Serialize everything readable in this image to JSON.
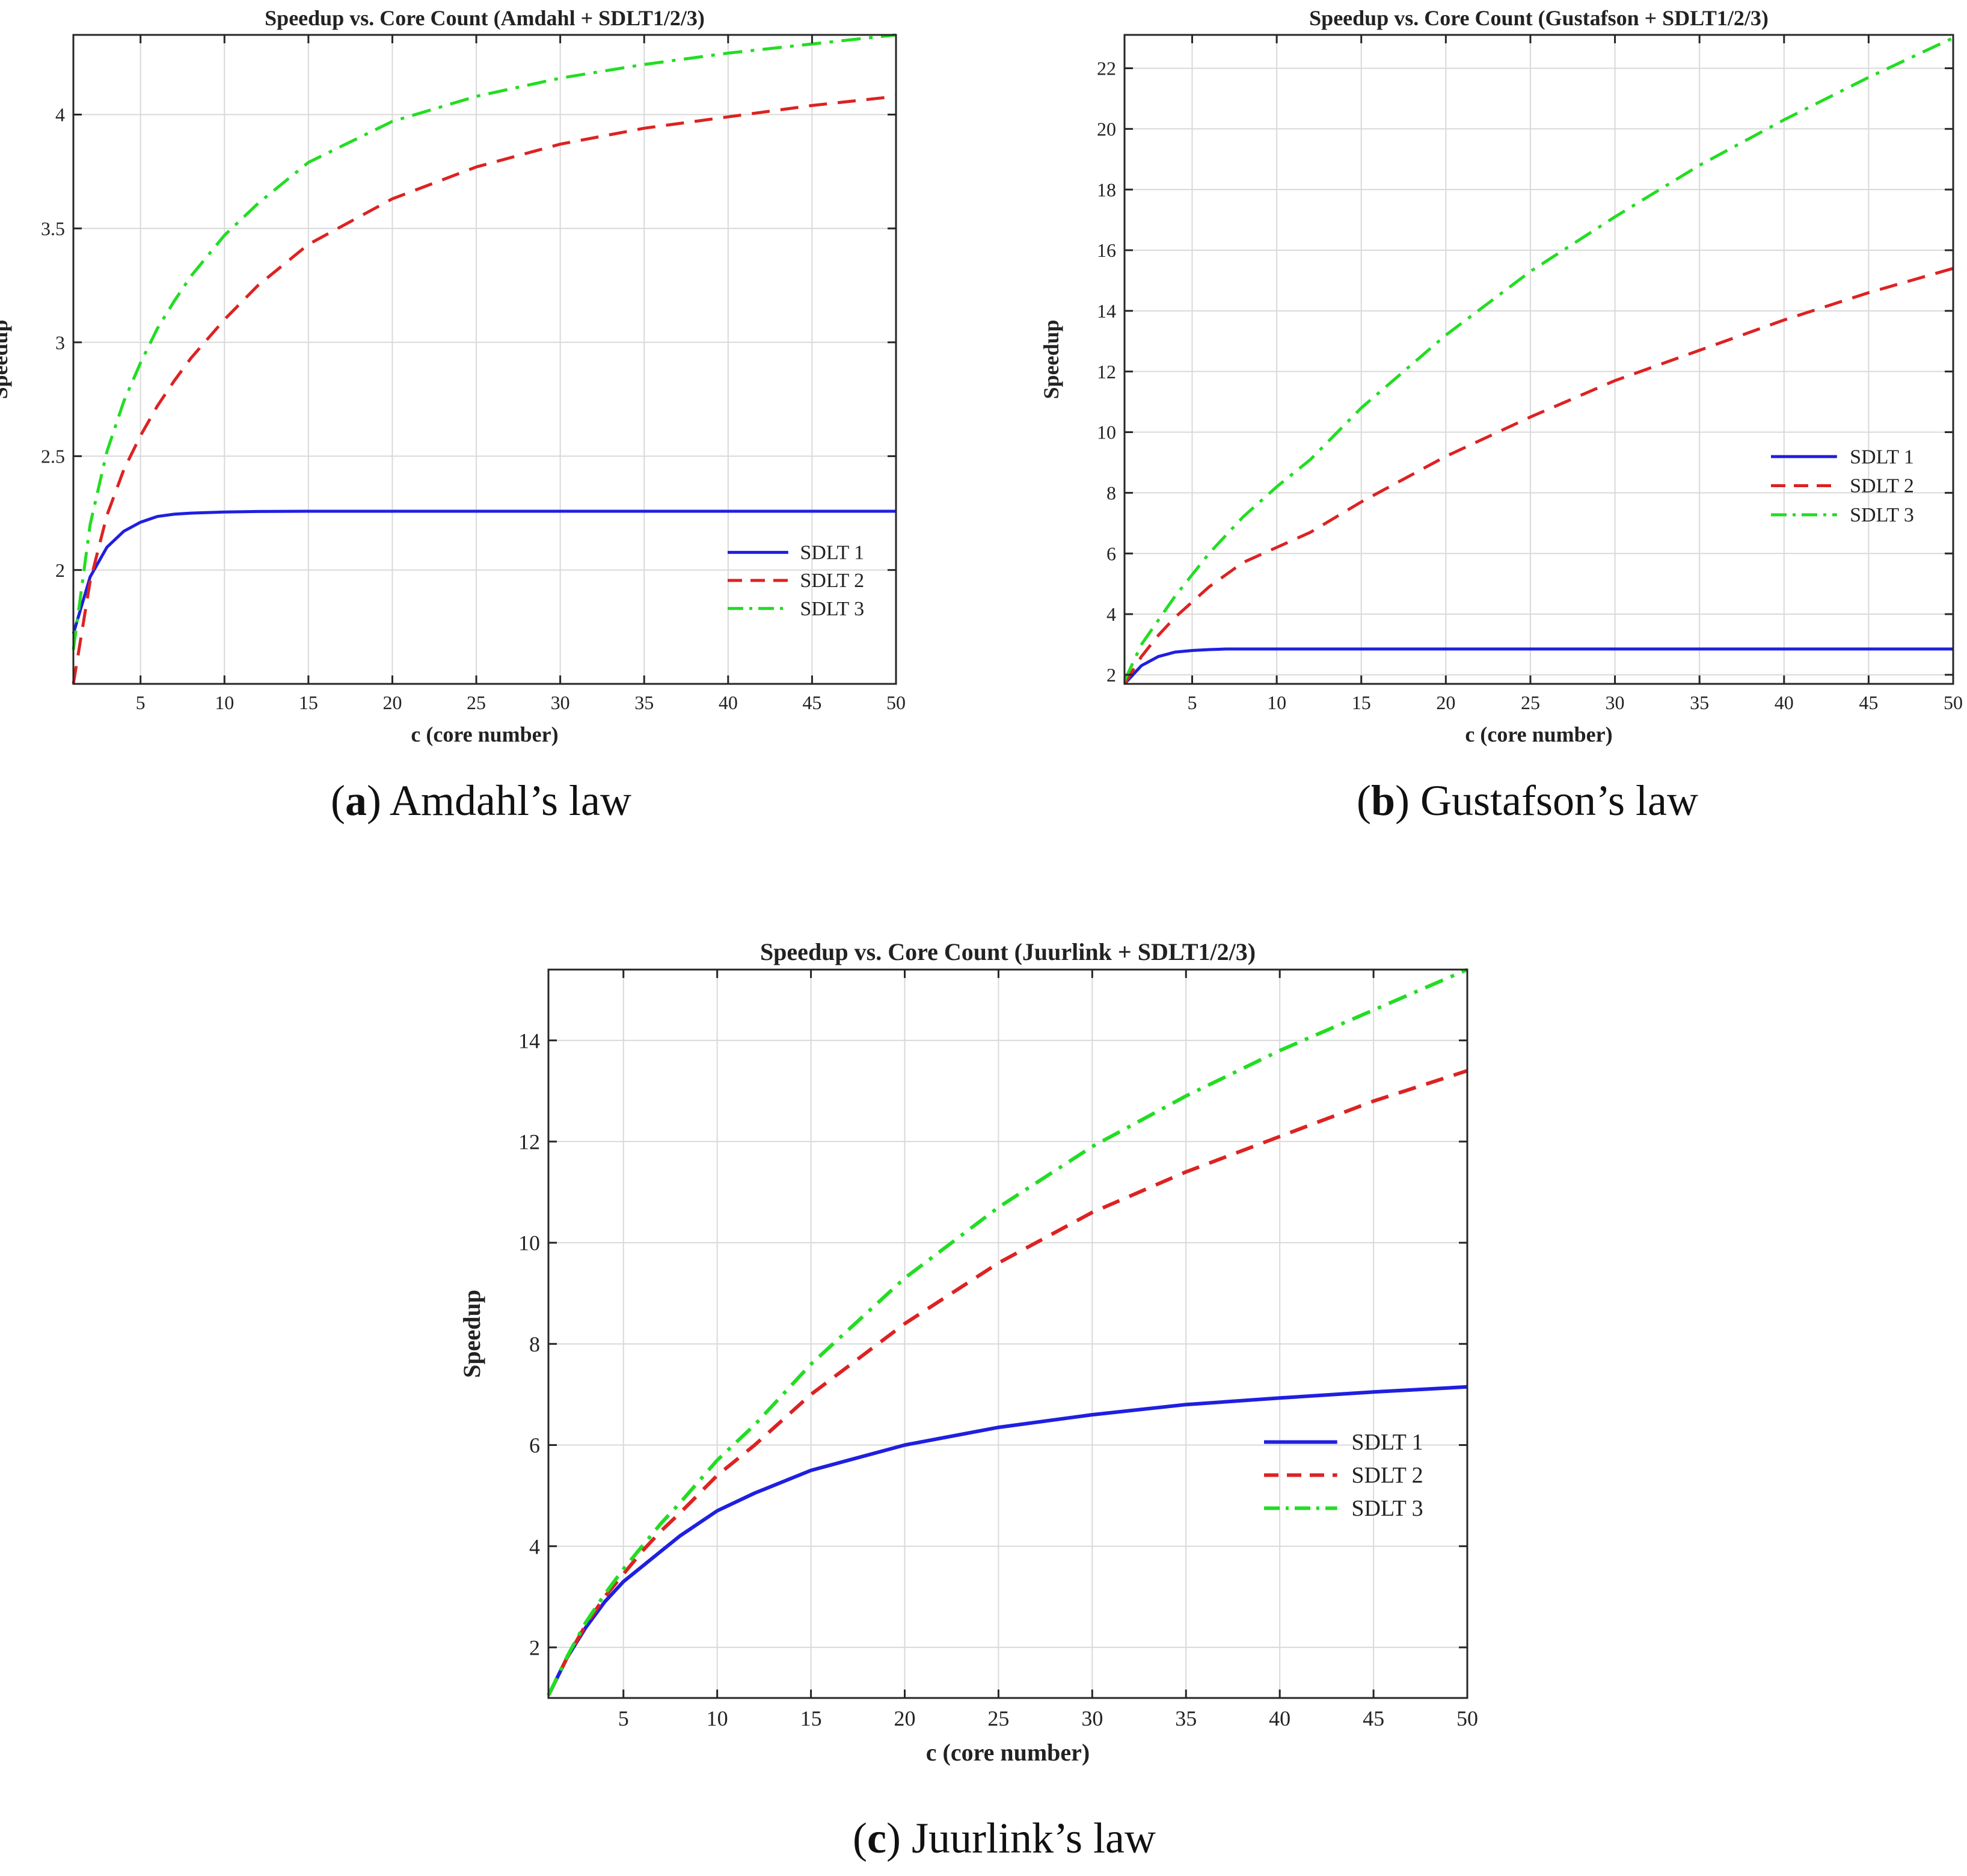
{
  "captions": [
    {
      "letter": "a",
      "text": ") Amdahl’s law"
    },
    {
      "letter": "b",
      "text": ") Gustafson’s law"
    },
    {
      "letter": "c",
      "text": ") Juurlink’s law"
    }
  ],
  "chart_data": [
    {
      "type": "line",
      "title": "Speedup vs. Core Count (Amdahl + SDLT1/2/3)",
      "xlabel": "c (core number)",
      "ylabel": "Speedup",
      "xlim": [
        1,
        50
      ],
      "ylim": [
        1.5,
        4.35
      ],
      "xticks": [
        5,
        10,
        15,
        20,
        25,
        30,
        35,
        40,
        45,
        50
      ],
      "yticks": [
        2,
        2.5,
        3,
        3.5,
        4
      ],
      "ytick_labels": [
        "2",
        "2.5",
        "3",
        "3.5",
        "4"
      ],
      "grid": true,
      "legend": "lower-right",
      "x": [
        1,
        2,
        3,
        4,
        5,
        6,
        7,
        8,
        10,
        12,
        15,
        20,
        25,
        30,
        35,
        40,
        45,
        50
      ],
      "series": [
        {
          "name": "SDLT 1",
          "color": "#1f1fe0",
          "dash": "solid",
          "values": [
            1.72,
            1.97,
            2.1,
            2.17,
            2.21,
            2.235,
            2.245,
            2.25,
            2.255,
            2.257,
            2.258,
            2.258,
            2.258,
            2.258,
            2.258,
            2.258,
            2.258,
            2.258
          ]
        },
        {
          "name": "SDLT 2",
          "color": "#dd2222",
          "dash": "dashed",
          "values": [
            1.5,
            1.95,
            2.24,
            2.44,
            2.59,
            2.72,
            2.83,
            2.93,
            3.1,
            3.25,
            3.43,
            3.63,
            3.77,
            3.87,
            3.94,
            3.99,
            4.04,
            4.08
          ]
        },
        {
          "name": "SDLT 3",
          "color": "#22dd22",
          "dash": "dashdot",
          "values": [
            1.65,
            2.2,
            2.52,
            2.74,
            2.91,
            3.06,
            3.18,
            3.29,
            3.47,
            3.61,
            3.79,
            3.97,
            4.08,
            4.16,
            4.22,
            4.27,
            4.31,
            4.35
          ]
        }
      ]
    },
    {
      "type": "line",
      "title": "Speedup vs. Core Count (Gustafson + SDLT1/2/3)",
      "xlabel": "c (core number)",
      "ylabel": "Speedup",
      "xlim": [
        1,
        50
      ],
      "ylim": [
        1.7,
        23.1
      ],
      "xticks": [
        5,
        10,
        15,
        20,
        25,
        30,
        35,
        40,
        45,
        50
      ],
      "yticks": [
        2,
        4,
        6,
        8,
        10,
        12,
        14,
        16,
        18,
        20,
        22
      ],
      "ytick_labels": [
        "2",
        "4",
        "6",
        "8",
        "10",
        "12",
        "14",
        "16",
        "18",
        "20",
        "22"
      ],
      "grid": true,
      "legend": "right",
      "x": [
        1,
        2,
        3,
        4,
        5,
        6,
        7,
        8,
        10,
        12,
        15,
        20,
        25,
        30,
        35,
        40,
        45,
        50
      ],
      "series": [
        {
          "name": "SDLT 1",
          "color": "#1f1fe0",
          "dash": "solid",
          "values": [
            1.7,
            2.3,
            2.6,
            2.75,
            2.8,
            2.83,
            2.85,
            2.85,
            2.85,
            2.85,
            2.85,
            2.85,
            2.85,
            2.85,
            2.85,
            2.85,
            2.85,
            2.85
          ]
        },
        {
          "name": "SDLT 2",
          "color": "#dd2222",
          "dash": "dashed",
          "values": [
            1.7,
            2.6,
            3.3,
            3.9,
            4.4,
            4.9,
            5.3,
            5.7,
            6.2,
            6.7,
            7.7,
            9.2,
            10.5,
            11.7,
            12.7,
            13.7,
            14.6,
            15.4
          ]
        },
        {
          "name": "SDLT 3",
          "color": "#22dd22",
          "dash": "dashdot",
          "values": [
            1.8,
            3.0,
            3.8,
            4.6,
            5.3,
            6.0,
            6.6,
            7.2,
            8.2,
            9.1,
            10.8,
            13.2,
            15.3,
            17.1,
            18.8,
            20.3,
            21.7,
            23.0
          ]
        }
      ]
    },
    {
      "type": "line",
      "title": "Speedup vs. Core Count (Juurlink + SDLT1/2/3)",
      "xlabel": "c (core number)",
      "ylabel": "Speedup",
      "xlim": [
        1,
        50
      ],
      "ylim": [
        1,
        15.4
      ],
      "xticks": [
        5,
        10,
        15,
        20,
        25,
        30,
        35,
        40,
        45,
        50
      ],
      "yticks": [
        2,
        4,
        6,
        8,
        10,
        12,
        14
      ],
      "ytick_labels": [
        "2",
        "4",
        "6",
        "8",
        "10",
        "12",
        "14"
      ],
      "grid": true,
      "legend": "lower-right",
      "x": [
        1,
        2,
        3,
        4,
        5,
        6,
        7,
        8,
        10,
        12,
        15,
        20,
        25,
        30,
        35,
        40,
        45,
        50
      ],
      "series": [
        {
          "name": "SDLT 1",
          "color": "#1f1fe0",
          "dash": "solid",
          "values": [
            1.05,
            1.8,
            2.4,
            2.9,
            3.3,
            3.6,
            3.9,
            4.2,
            4.7,
            5.05,
            5.5,
            6.0,
            6.35,
            6.6,
            6.8,
            6.93,
            7.05,
            7.15
          ]
        },
        {
          "name": "SDLT 2",
          "color": "#dd2222",
          "dash": "dashed",
          "values": [
            1.05,
            1.8,
            2.45,
            3.0,
            3.45,
            3.9,
            4.3,
            4.65,
            5.4,
            6.0,
            7.0,
            8.4,
            9.6,
            10.6,
            11.4,
            12.1,
            12.8,
            13.4
          ]
        },
        {
          "name": "SDLT 3",
          "color": "#22dd22",
          "dash": "dashdot",
          "values": [
            1.05,
            1.82,
            2.5,
            3.05,
            3.55,
            4.0,
            4.45,
            4.85,
            5.7,
            6.4,
            7.6,
            9.3,
            10.7,
            11.9,
            12.9,
            13.8,
            14.6,
            15.4
          ]
        }
      ]
    }
  ]
}
